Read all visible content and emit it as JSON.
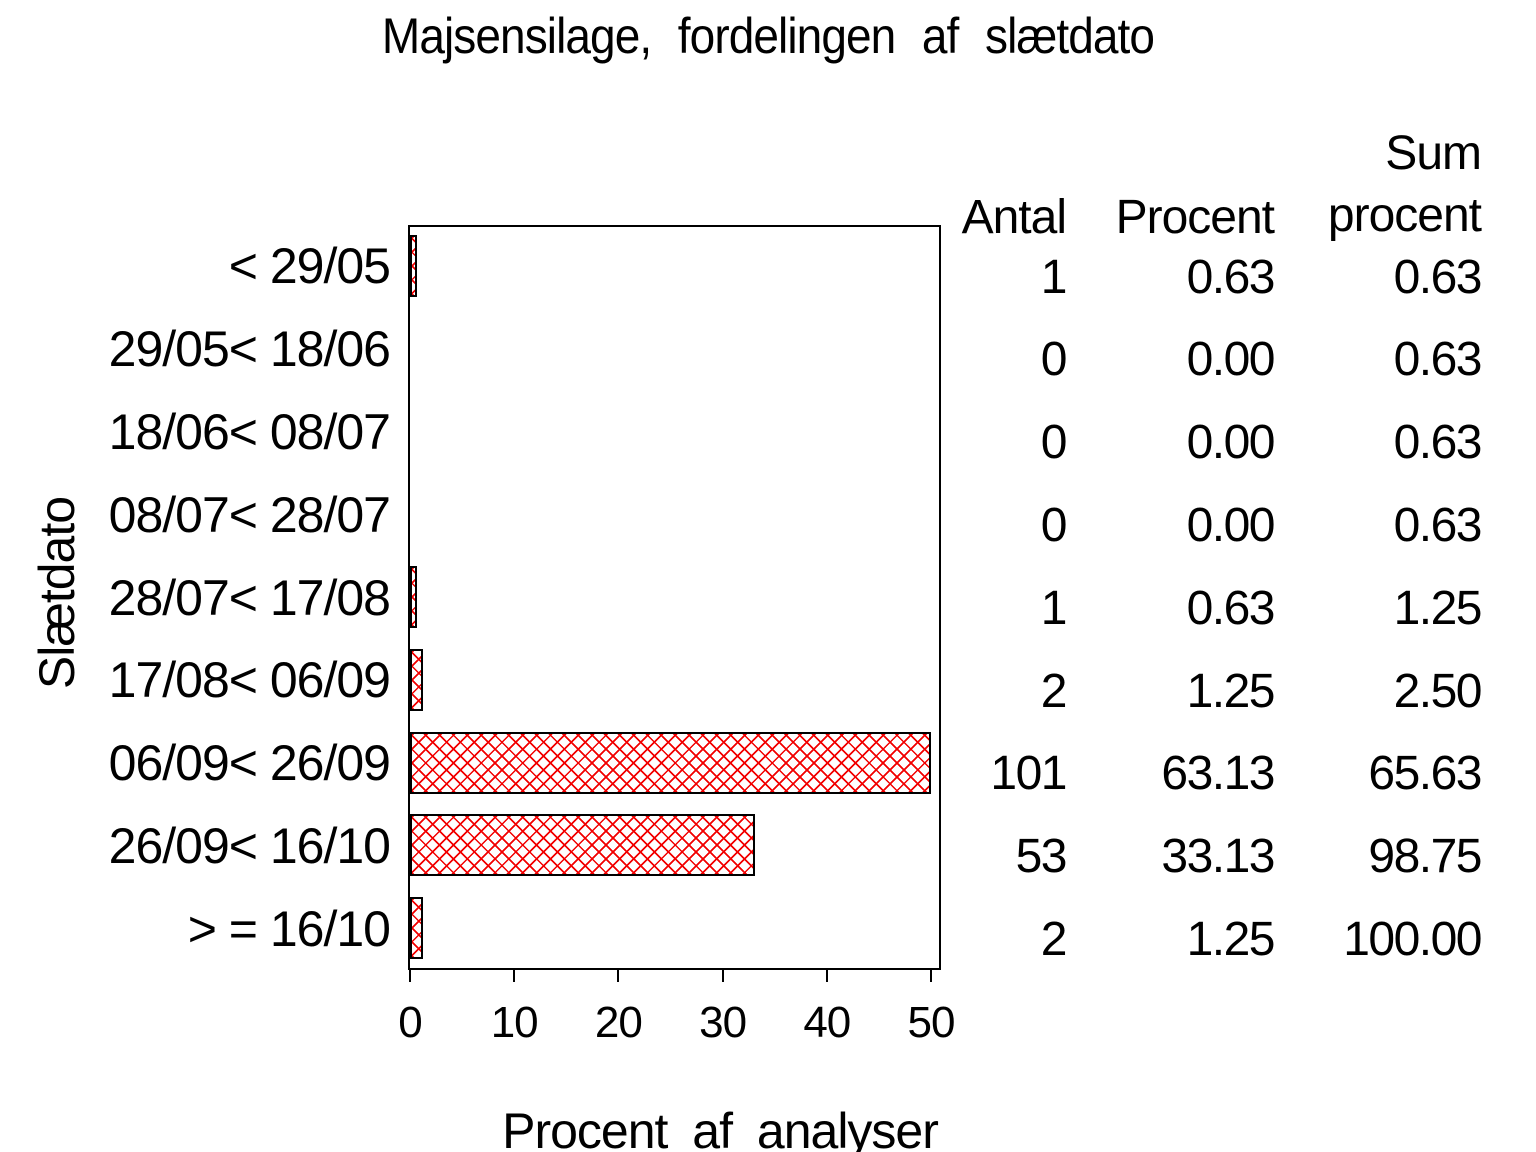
{
  "title": "Majsensilage, fordelingen af slætdato",
  "chart_data": {
    "type": "bar",
    "orientation": "horizontal",
    "title": "Majsensilage, fordelingen af slætdato",
    "xlabel": "Procent af analyser",
    "ylabel": "Slætdato",
    "xlim": [
      0,
      50
    ],
    "xticks": [
      "0",
      "10",
      "20",
      "30",
      "40",
      "50"
    ],
    "grid": "off",
    "bar_color": "#f20000",
    "bar_fill_pattern": "red diagonal crosshatch on white, black outline",
    "axis_note": "bar for 63.13 % is drawn clipped at the axis maximum of 50",
    "categories": [
      "< 29/05",
      "29/05< 18/06",
      "18/06< 08/07",
      "08/07< 28/07",
      "28/07< 17/08",
      "17/08< 06/09",
      "06/09< 26/09",
      "26/09< 16/10",
      "> = 16/10"
    ],
    "series": [
      {
        "name": "Procent af analyser",
        "values": [
          0.63,
          0.0,
          0.0,
          0.0,
          0.63,
          1.25,
          63.13,
          33.13,
          1.25
        ]
      },
      {
        "name": "Antal",
        "values": [
          1,
          0,
          0,
          0,
          1,
          2,
          101,
          53,
          2
        ]
      },
      {
        "name": "Sum procent",
        "values": [
          0.63,
          0.63,
          0.63,
          0.63,
          1.25,
          2.5,
          65.63,
          98.75,
          100.0
        ]
      }
    ],
    "table": {
      "col1_header": "Antal",
      "col2_header": "Procent",
      "col3_header_lines": [
        "Sum",
        "procent"
      ],
      "rows": [
        [
          "1",
          "0.63",
          "0.63"
        ],
        [
          "0",
          "0.00",
          "0.63"
        ],
        [
          "0",
          "0.00",
          "0.63"
        ],
        [
          "0",
          "0.00",
          "0.63"
        ],
        [
          "1",
          "0.63",
          "1.25"
        ],
        [
          "2",
          "1.25",
          "2.50"
        ],
        [
          "101",
          "63.13",
          "65.63"
        ],
        [
          "53",
          "33.13",
          "98.75"
        ],
        [
          "2",
          "1.25",
          "100.00"
        ]
      ]
    }
  }
}
